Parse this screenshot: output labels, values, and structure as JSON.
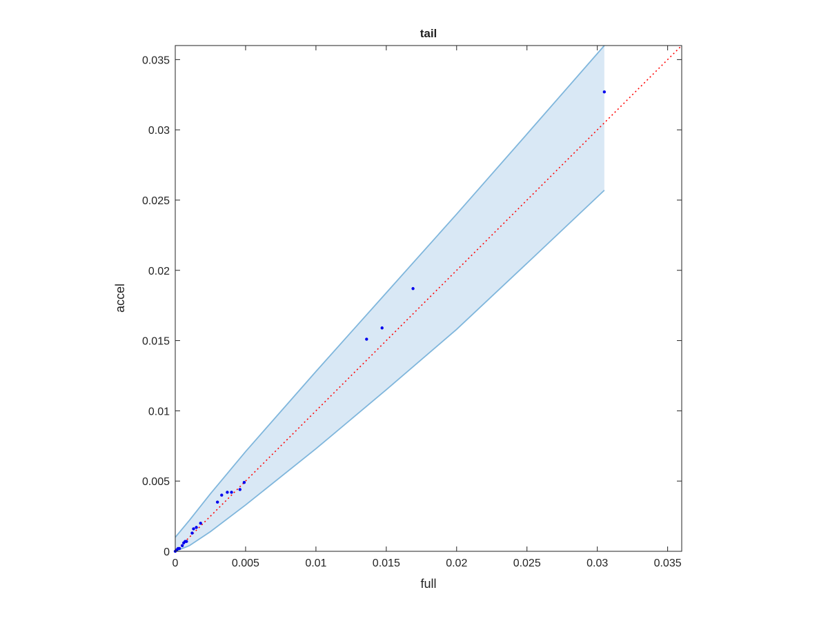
{
  "chart_data": {
    "type": "scatter",
    "title": "tail",
    "x_label": "full",
    "y_label": "accel",
    "xlim": [
      0,
      0.036
    ],
    "ylim": [
      0,
      0.036
    ],
    "xticks": [
      0,
      0.005,
      0.01,
      0.015,
      0.02,
      0.025,
      0.03,
      0.035
    ],
    "yticks": [
      0,
      0.005,
      0.01,
      0.015,
      0.02,
      0.025,
      0.03,
      0.035
    ],
    "band": {
      "color": "#7fb6dc",
      "fill": "#d9e8f5",
      "x": [
        0,
        0.001,
        0.0025,
        0.005,
        0.01,
        0.015,
        0.02,
        0.025,
        0.0305
      ],
      "upper": [
        0.001,
        0.0022,
        0.0041,
        0.0071,
        0.0128,
        0.0184,
        0.024,
        0.0297,
        0.036
      ],
      "lower": [
        0,
        0.0004,
        0.0014,
        0.0033,
        0.0073,
        0.0115,
        0.0158,
        0.0205,
        0.0257
      ]
    },
    "reference_line": {
      "color": "#ff0000",
      "x": [
        0,
        0.036
      ],
      "y": [
        0,
        0.036
      ]
    },
    "series": [
      {
        "color": "#0000ee",
        "x": [
          0.0305,
          0.0169,
          0.0147,
          0.0136,
          0.0049,
          0.0046,
          0.004,
          0.0037,
          0.0033,
          0.003,
          0.0018,
          0.0015,
          0.0013,
          0.0012,
          0.0008,
          0.0007,
          0.0006,
          0.0005,
          0.0003,
          0.0002,
          0.0001,
          0
        ],
        "values": [
          0.0327,
          0.0187,
          0.0159,
          0.0151,
          0.0049,
          0.0044,
          0.0042,
          0.0042,
          0.004,
          0.0035,
          0.002,
          0.0017,
          0.0016,
          0.0013,
          0.0007,
          0.0007,
          0.0006,
          0.0004,
          0.0002,
          0.0002,
          0.0001,
          0
        ]
      }
    ]
  }
}
